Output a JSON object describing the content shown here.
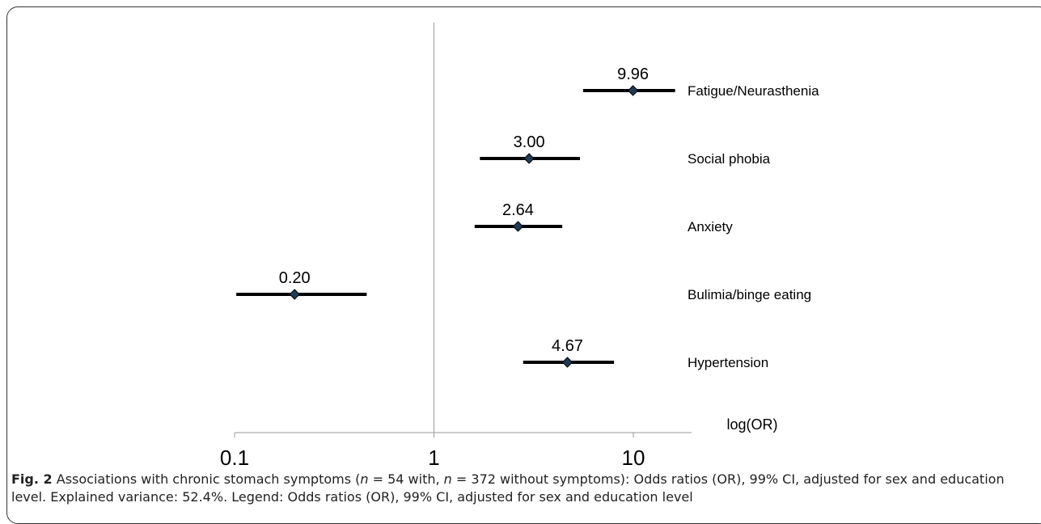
{
  "chart_data": {
    "type": "forest",
    "x_scale": "log",
    "xlim": [
      0.1,
      18
    ],
    "xticks": [
      0.1,
      1,
      10
    ],
    "tick_labels": [
      "0.1",
      "1",
      "10"
    ],
    "reference_line": 1,
    "xlabel": "log(OR)",
    "grid": false,
    "series": [
      {
        "label": "Fatigue/Neurasthenia",
        "or": 9.96,
        "lo": 5.6,
        "hi": 16.2,
        "value_label": "9.96"
      },
      {
        "label": "Social phobia",
        "or": 3.0,
        "lo": 1.7,
        "hi": 5.4,
        "value_label": "3.00"
      },
      {
        "label": "Anxiety",
        "or": 2.64,
        "lo": 1.6,
        "hi": 4.4,
        "value_label": "2.64"
      },
      {
        "label": "Bulimia/binge eating",
        "or": 0.2,
        "lo": 0.102,
        "hi": 0.46,
        "value_label": "0.20"
      },
      {
        "label": "Hypertension",
        "or": 4.67,
        "lo": 2.8,
        "hi": 8.0,
        "value_label": "4.67"
      }
    ],
    "colors": {
      "line": "#000000",
      "marker": "#1f3b57",
      "axis": "#999999"
    }
  },
  "caption": {
    "label": "Fig. 2",
    "text1": " Associations with chronic stomach symptoms (",
    "n1": "n",
    "text2": " = 54 with, ",
    "n2": "n",
    "text3": " = 372 without symptoms): Odds ratios (OR), 99% CI, adjusted for sex and education level. Explained variance: 52.4%. Legend: Odds ratios (OR), 99% CI, adjusted for sex and education level"
  }
}
